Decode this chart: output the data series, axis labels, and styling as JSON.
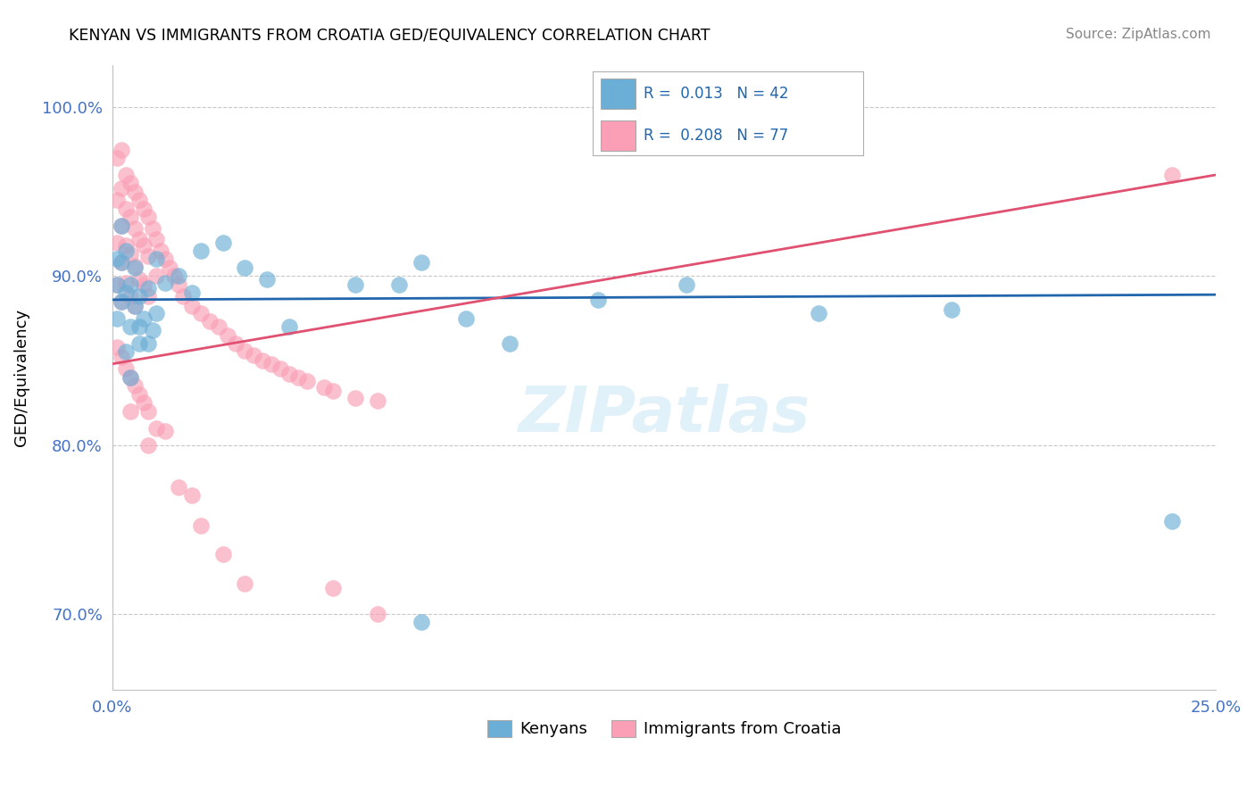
{
  "title": "KENYAN VS IMMIGRANTS FROM CROATIA GED/EQUIVALENCY CORRELATION CHART",
  "source_text": "Source: ZipAtlas.com",
  "ylabel": "GED/Equivalency",
  "legend_labels": [
    "Kenyans",
    "Immigrants from Croatia"
  ],
  "kenyan_color": "#6baed6",
  "croatia_color": "#fa9fb5",
  "kenyan_R": 0.013,
  "kenyan_N": 42,
  "croatia_R": 0.208,
  "croatia_N": 77,
  "x_min": 0.0,
  "x_max": 0.25,
  "y_min": 0.655,
  "y_max": 1.025,
  "x_ticks": [
    0.0,
    0.025,
    0.05,
    0.075,
    0.1,
    0.125,
    0.15,
    0.175,
    0.2,
    0.225,
    0.25
  ],
  "x_tick_labels": [
    "0.0%",
    "",
    "",
    "",
    "",
    "",
    "",
    "",
    "",
    "",
    "25.0%"
  ],
  "y_ticks": [
    0.7,
    0.8,
    0.9,
    1.0
  ],
  "y_tick_labels": [
    "70.0%",
    "80.0%",
    "90.0%",
    "100.0%"
  ],
  "kenyan_line_x": [
    0.0,
    0.25
  ],
  "kenyan_line_y": [
    0.886,
    0.889
  ],
  "croatia_line_x": [
    0.0,
    0.25
  ],
  "croatia_line_y": [
    0.848,
    0.96
  ],
  "kenyan_scatter_x": [
    0.001,
    0.001,
    0.001,
    0.002,
    0.002,
    0.002,
    0.003,
    0.003,
    0.004,
    0.004,
    0.005,
    0.005,
    0.006,
    0.006,
    0.007,
    0.008,
    0.009,
    0.01,
    0.01,
    0.012,
    0.015,
    0.018,
    0.02,
    0.025,
    0.03,
    0.035,
    0.04,
    0.055,
    0.065,
    0.07,
    0.08,
    0.09,
    0.11,
    0.13,
    0.16,
    0.19,
    0.24,
    0.003,
    0.004,
    0.006,
    0.008,
    0.07
  ],
  "kenyan_scatter_y": [
    0.91,
    0.895,
    0.875,
    0.93,
    0.908,
    0.885,
    0.915,
    0.89,
    0.895,
    0.87,
    0.905,
    0.882,
    0.888,
    0.86,
    0.875,
    0.893,
    0.868,
    0.91,
    0.878,
    0.896,
    0.9,
    0.89,
    0.915,
    0.92,
    0.905,
    0.898,
    0.87,
    0.895,
    0.895,
    0.908,
    0.875,
    0.86,
    0.886,
    0.895,
    0.878,
    0.88,
    0.755,
    0.855,
    0.84,
    0.87,
    0.86,
    0.695
  ],
  "croatia_scatter_x": [
    0.001,
    0.001,
    0.001,
    0.001,
    0.002,
    0.002,
    0.002,
    0.002,
    0.002,
    0.003,
    0.003,
    0.003,
    0.003,
    0.004,
    0.004,
    0.004,
    0.004,
    0.005,
    0.005,
    0.005,
    0.005,
    0.006,
    0.006,
    0.006,
    0.007,
    0.007,
    0.007,
    0.008,
    0.008,
    0.008,
    0.009,
    0.01,
    0.01,
    0.011,
    0.012,
    0.013,
    0.014,
    0.015,
    0.016,
    0.018,
    0.02,
    0.022,
    0.024,
    0.026,
    0.028,
    0.03,
    0.032,
    0.034,
    0.036,
    0.038,
    0.04,
    0.042,
    0.044,
    0.048,
    0.05,
    0.055,
    0.06,
    0.001,
    0.002,
    0.003,
    0.004,
    0.004,
    0.005,
    0.006,
    0.007,
    0.008,
    0.008,
    0.01,
    0.012,
    0.015,
    0.018,
    0.02,
    0.025,
    0.03,
    0.05,
    0.06,
    0.24
  ],
  "croatia_scatter_y": [
    0.97,
    0.945,
    0.92,
    0.895,
    0.975,
    0.952,
    0.93,
    0.908,
    0.885,
    0.96,
    0.94,
    0.918,
    0.896,
    0.955,
    0.935,
    0.913,
    0.888,
    0.95,
    0.928,
    0.906,
    0.882,
    0.945,
    0.922,
    0.898,
    0.94,
    0.918,
    0.895,
    0.935,
    0.912,
    0.888,
    0.928,
    0.922,
    0.9,
    0.915,
    0.91,
    0.905,
    0.9,
    0.895,
    0.888,
    0.882,
    0.878,
    0.873,
    0.87,
    0.865,
    0.86,
    0.856,
    0.853,
    0.85,
    0.848,
    0.845,
    0.842,
    0.84,
    0.838,
    0.834,
    0.832,
    0.828,
    0.826,
    0.858,
    0.852,
    0.845,
    0.84,
    0.82,
    0.835,
    0.83,
    0.825,
    0.82,
    0.8,
    0.81,
    0.808,
    0.775,
    0.77,
    0.752,
    0.735,
    0.718,
    0.715,
    0.7,
    0.96
  ]
}
